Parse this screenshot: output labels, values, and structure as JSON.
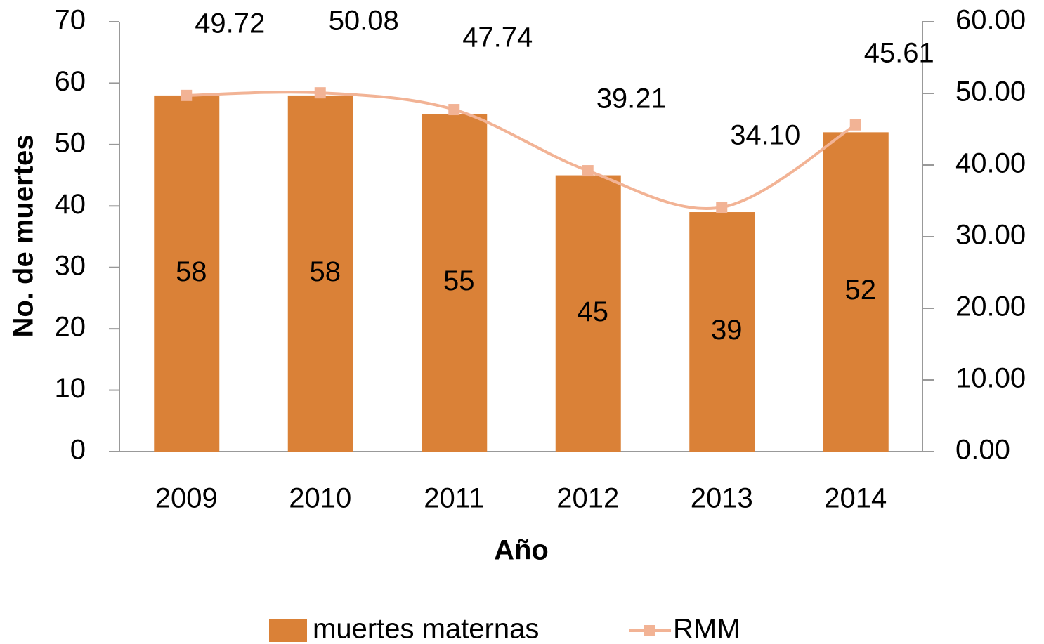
{
  "chart_data": {
    "type": "bar_line",
    "x_label": "Año",
    "y_label": "No. de muertes",
    "categories": [
      "2009",
      "2010",
      "2011",
      "2012",
      "2013",
      "2014"
    ],
    "series": [
      {
        "name": "muertes maternas",
        "color": "#da8137",
        "type": "bar",
        "values": [
          58,
          58,
          55,
          45,
          39,
          52
        ]
      },
      {
        "name": "RMM",
        "color": "#f2b395",
        "type": "line",
        "axis": "y2",
        "values": [
          49.72,
          50.08,
          47.74,
          39.21,
          34.1,
          45.61
        ],
        "value_labels": [
          "49.72",
          "50.08",
          "47.74",
          "39.21",
          "34.10",
          "45.61"
        ]
      }
    ],
    "ylim": [
      0,
      70
    ],
    "yticks": [
      0,
      10,
      20,
      30,
      40,
      50,
      60,
      70
    ],
    "y2lim": [
      0,
      60
    ],
    "y2ticks": [
      {
        "value": 0,
        "label": "0.00"
      },
      {
        "value": 10,
        "label": "10.00"
      },
      {
        "value": 20,
        "label": "20.00"
      },
      {
        "value": 30,
        "label": "30.00"
      },
      {
        "value": 40,
        "label": "40.00"
      },
      {
        "value": 50,
        "label": "50.00"
      },
      {
        "value": 60,
        "label": "60.00"
      }
    ],
    "legend": "bottom"
  }
}
